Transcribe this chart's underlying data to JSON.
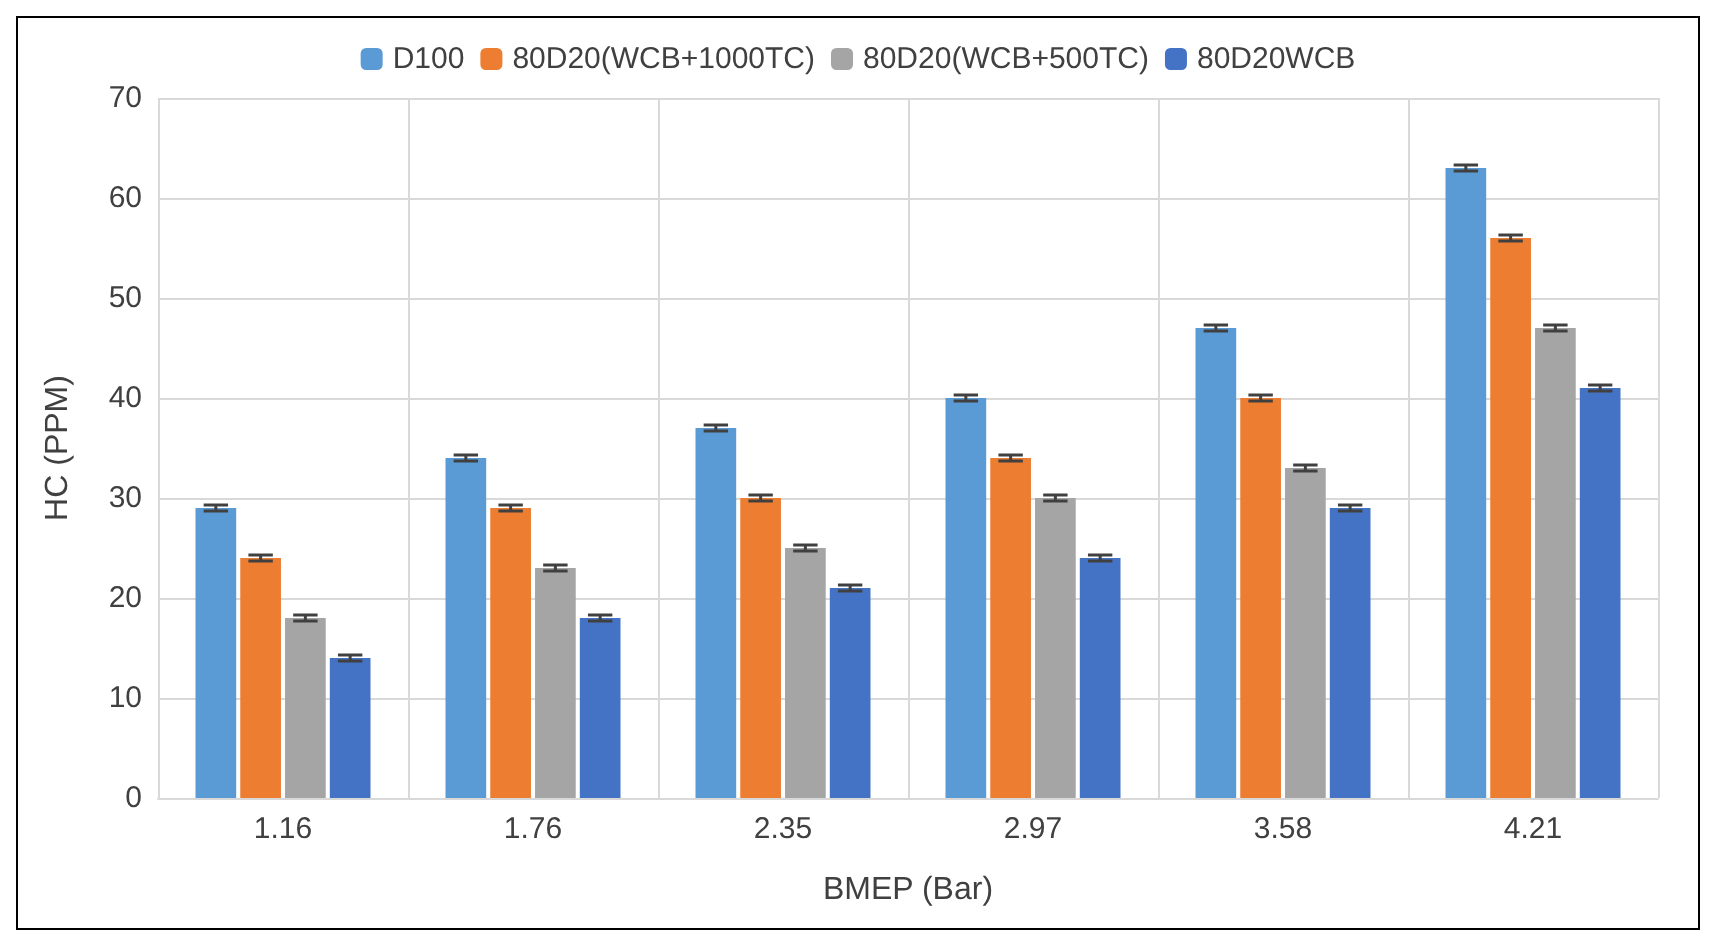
{
  "chart_data": {
    "type": "bar",
    "xlabel": "BMEP (Bar)",
    "ylabel": "HC (PPM)",
    "categories": [
      "1.16",
      "1.76",
      "2.35",
      "2.97",
      "3.58",
      "4.21"
    ],
    "series": [
      {
        "name": "D100",
        "color": "#5b9bd5",
        "values": [
          29,
          34,
          37,
          40,
          47,
          63
        ],
        "errors": [
          0.3,
          0.3,
          0.3,
          0.3,
          0.3,
          0.3
        ]
      },
      {
        "name": "80D20(WCB+1000TC)",
        "color": "#ed7d31",
        "values": [
          24,
          29,
          30,
          34,
          40,
          56
        ],
        "errors": [
          0.3,
          0.3,
          0.3,
          0.3,
          0.3,
          0.3
        ]
      },
      {
        "name": "80D20(WCB+500TC)",
        "color": "#a5a5a5",
        "values": [
          18,
          23,
          25,
          30,
          33,
          47
        ],
        "errors": [
          0.3,
          0.3,
          0.3,
          0.3,
          0.3,
          0.3
        ]
      },
      {
        "name": "80D20WCB",
        "color": "#4472c4",
        "values": [
          14,
          18,
          21,
          24,
          29,
          41
        ],
        "errors": [
          0.3,
          0.3,
          0.3,
          0.3,
          0.3,
          0.3
        ]
      }
    ],
    "ylim": [
      0,
      70
    ],
    "yticks": [
      0,
      10,
      20,
      30,
      40,
      50,
      60,
      70
    ],
    "grid": true,
    "legend": "top"
  }
}
